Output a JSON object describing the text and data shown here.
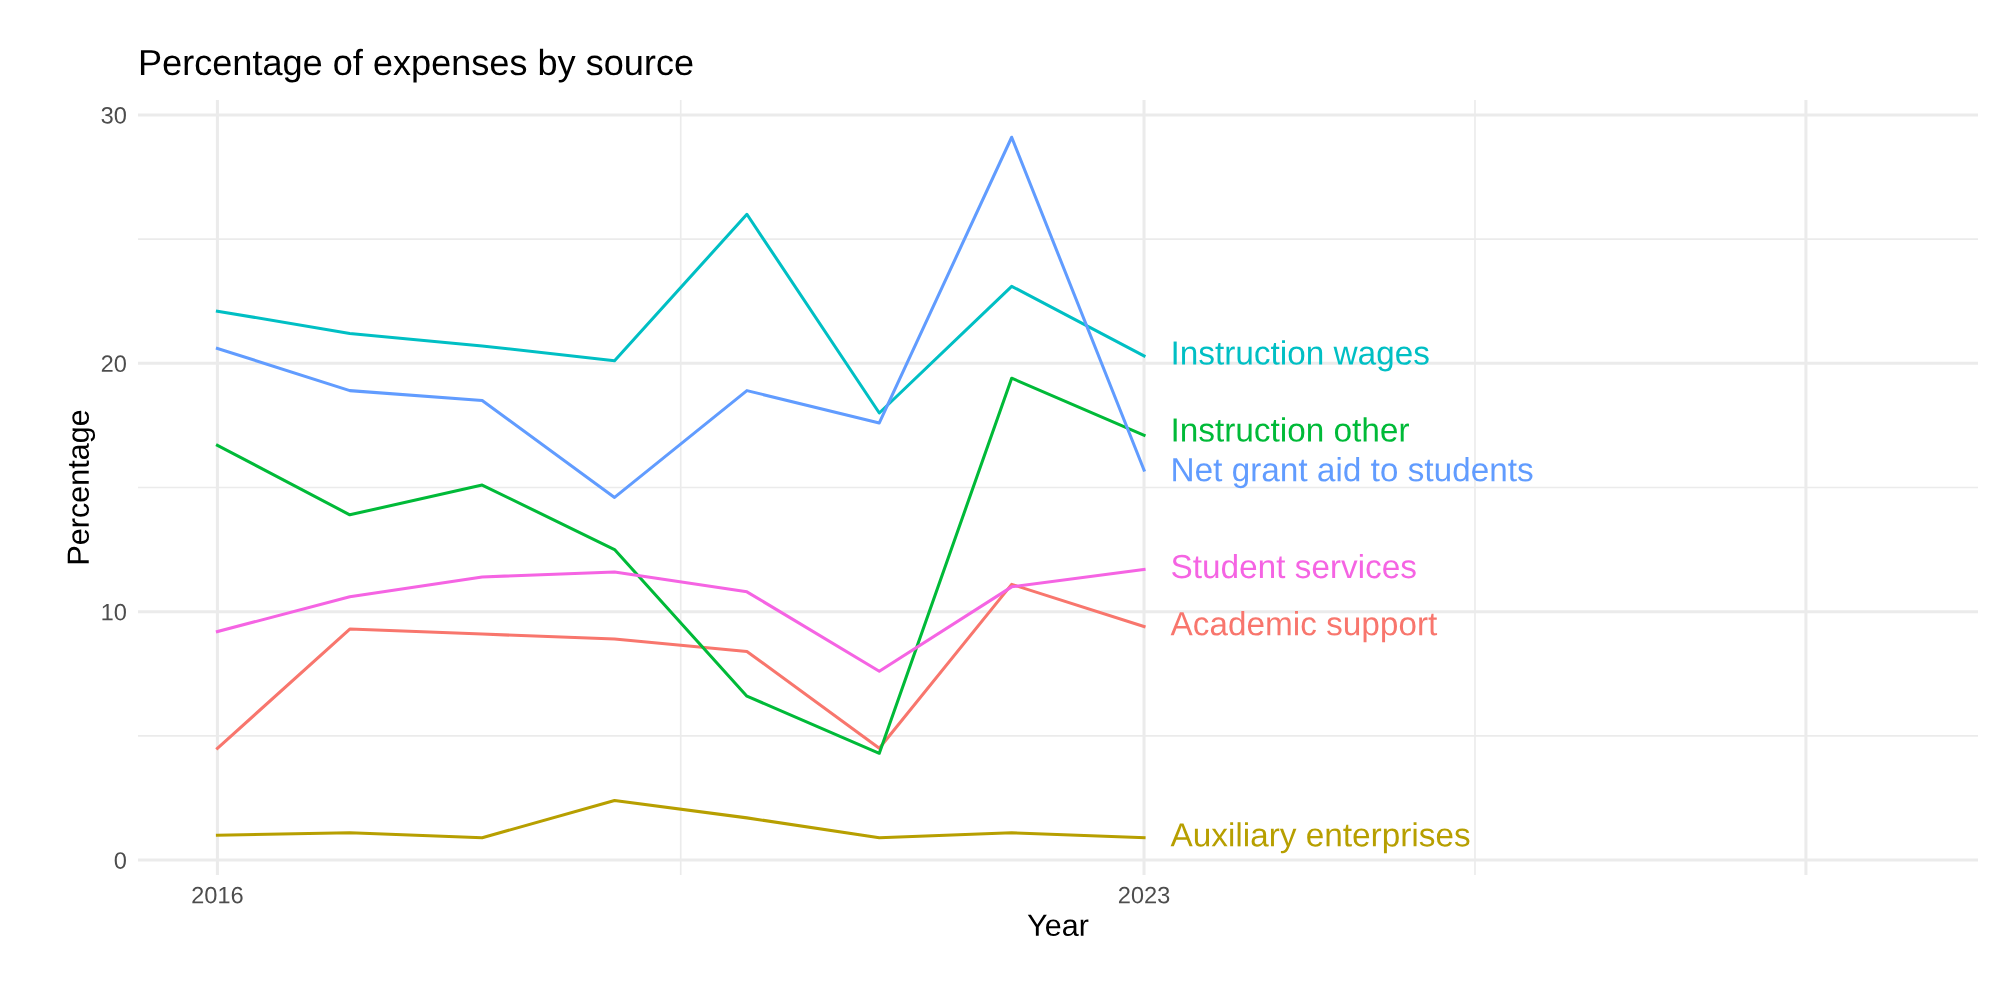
{
  "chart_data": {
    "type": "line",
    "title": "Percentage of expenses by source",
    "xlabel": "Year",
    "ylabel": "Percentage",
    "x": [
      2016,
      2017,
      2018,
      2019,
      2020,
      2021,
      2022,
      2023
    ],
    "xlim": [
      2015.4,
      2029.3
    ],
    "xticks": [
      2016,
      2023,
      {
        "value": 2028,
        "label": null
      },
      {
        "value": 2019.5,
        "label": null
      },
      {
        "value": 2025.5,
        "label": null
      }
    ],
    "ylim": [
      -0.6,
      30.6
    ],
    "yticks": [
      0,
      10,
      20,
      30,
      {
        "value": 5,
        "label": null
      },
      {
        "value": 15,
        "label": null
      },
      {
        "value": 25,
        "label": null
      }
    ],
    "grid": true,
    "legend": false,
    "marker": "none",
    "line_style": "solid",
    "series": [
      {
        "name": "Academic support",
        "color": "#f8766d",
        "values": [
          4.5,
          9.3,
          9.1,
          8.9,
          8.4,
          4.5,
          11.1,
          9.4
        ]
      },
      {
        "name": "Auxiliary enterprises",
        "color": "#b79f00",
        "values": [
          1.0,
          1.1,
          0.9,
          2.4,
          1.7,
          0.9,
          1.1,
          0.9
        ]
      },
      {
        "name": "Instruction other",
        "color": "#00ba38",
        "values": [
          16.7,
          13.9,
          15.1,
          12.5,
          6.6,
          4.3,
          19.4,
          17.1
        ]
      },
      {
        "name": "Instruction wages",
        "color": "#00bfc4",
        "values": [
          22.1,
          21.2,
          20.7,
          20.1,
          26.0,
          18.0,
          23.1,
          20.3
        ]
      },
      {
        "name": "Net grant aid to students",
        "color": "#619cff",
        "values": [
          20.6,
          18.9,
          18.5,
          14.6,
          18.9,
          17.6,
          29.1,
          15.7
        ]
      },
      {
        "name": "Student services",
        "color": "#f564e3",
        "values": [
          9.2,
          10.6,
          11.4,
          11.6,
          10.8,
          7.6,
          11.0,
          11.7
        ]
      }
    ]
  }
}
